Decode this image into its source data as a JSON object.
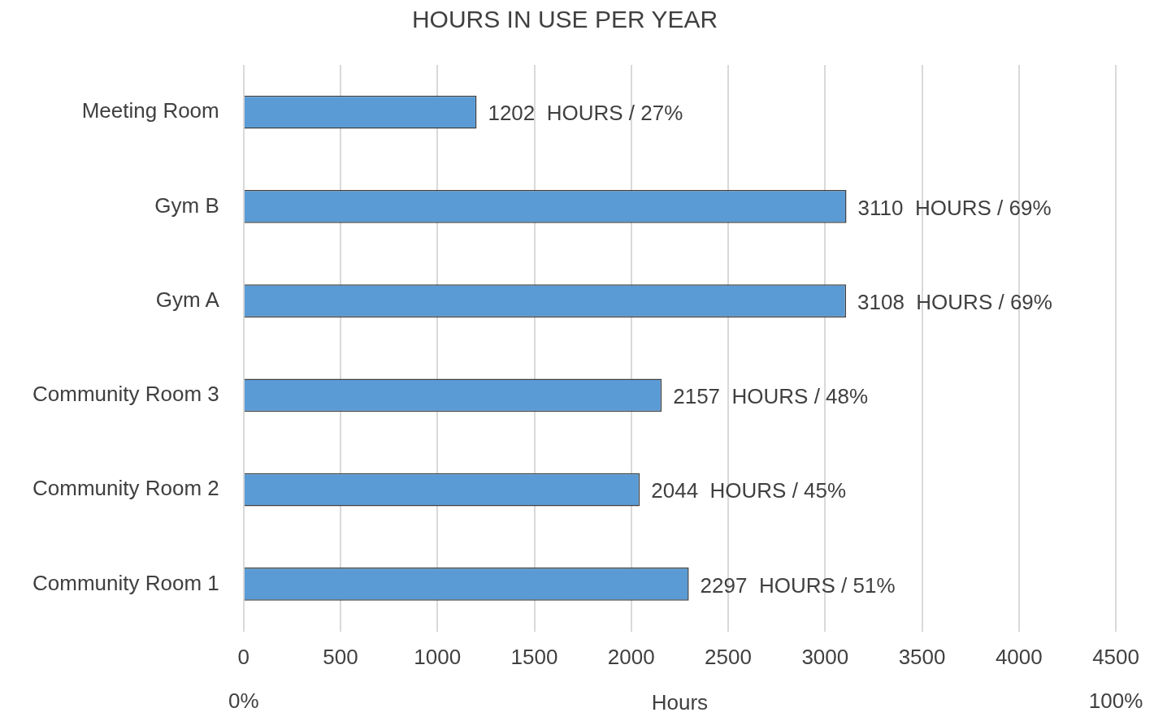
{
  "chart_data": {
    "type": "bar",
    "orientation": "horizontal",
    "title": "HOURS IN USE PER YEAR",
    "xlabel": "Hours",
    "categories": [
      "Meeting Room",
      "Gym B",
      "Gym A",
      "Community Room 3",
      "Community Room 2",
      "Community Room 1"
    ],
    "values": [
      1202,
      3110,
      3108,
      2157,
      2044,
      2297
    ],
    "value_labels": [
      "1202  HOURS / 27%",
      "3110  HOURS / 69%",
      "3108  HOURS / 69%",
      "2157  HOURS / 48%",
      "2044  HOURS / 45%",
      "2297  HOURS / 51%"
    ],
    "color": "#5b9bd5",
    "xlim": [
      0,
      4500
    ],
    "xticks": [
      0,
      500,
      1000,
      1500,
      2000,
      2500,
      3000,
      3500,
      4000,
      4500
    ],
    "x2lim": [
      0,
      100
    ],
    "x2ticks": [
      {
        "value": 0,
        "label": "0%"
      },
      {
        "value": 100,
        "label": "100%"
      }
    ],
    "grid": "x",
    "legend": false
  }
}
